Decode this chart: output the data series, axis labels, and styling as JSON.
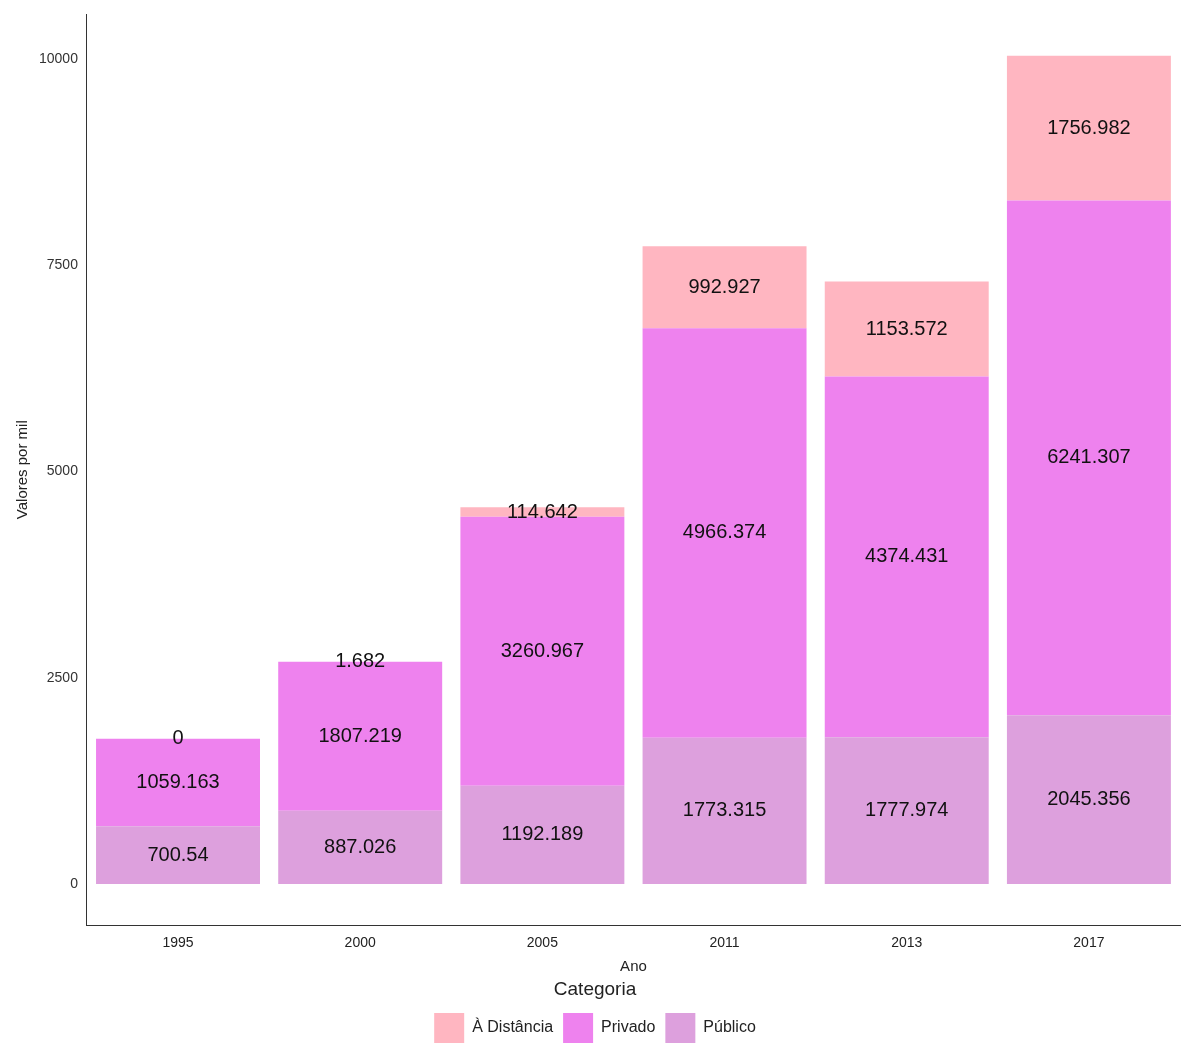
{
  "chart_data": {
    "type": "bar",
    "stacked": true,
    "xlabel": "Ano",
    "ylabel": "Valores por mil",
    "legend_title": "Categoria",
    "legend": "bottom",
    "grid": false,
    "data_labels": true,
    "categories": [
      "1995",
      "2000",
      "2005",
      "2011",
      "2013",
      "2017"
    ],
    "ylim": [
      -502,
      10549
    ],
    "yticks": [
      0,
      2500,
      5000,
      7500,
      10000
    ],
    "series": [
      {
        "name": "Público",
        "color": "#dda0dd",
        "values": [
          700.54,
          887.026,
          1192.189,
          1773.315,
          1777.974,
          2045.356
        ]
      },
      {
        "name": "Privado",
        "color": "#ee82ee",
        "values": [
          1059.163,
          1807.219,
          3260.967,
          4966.374,
          4374.431,
          6241.307
        ]
      },
      {
        "name": "À Distância",
        "color": "#ffb6c1",
        "values": [
          0,
          1.682,
          114.642,
          992.927,
          1153.572,
          1756.982
        ]
      }
    ]
  }
}
